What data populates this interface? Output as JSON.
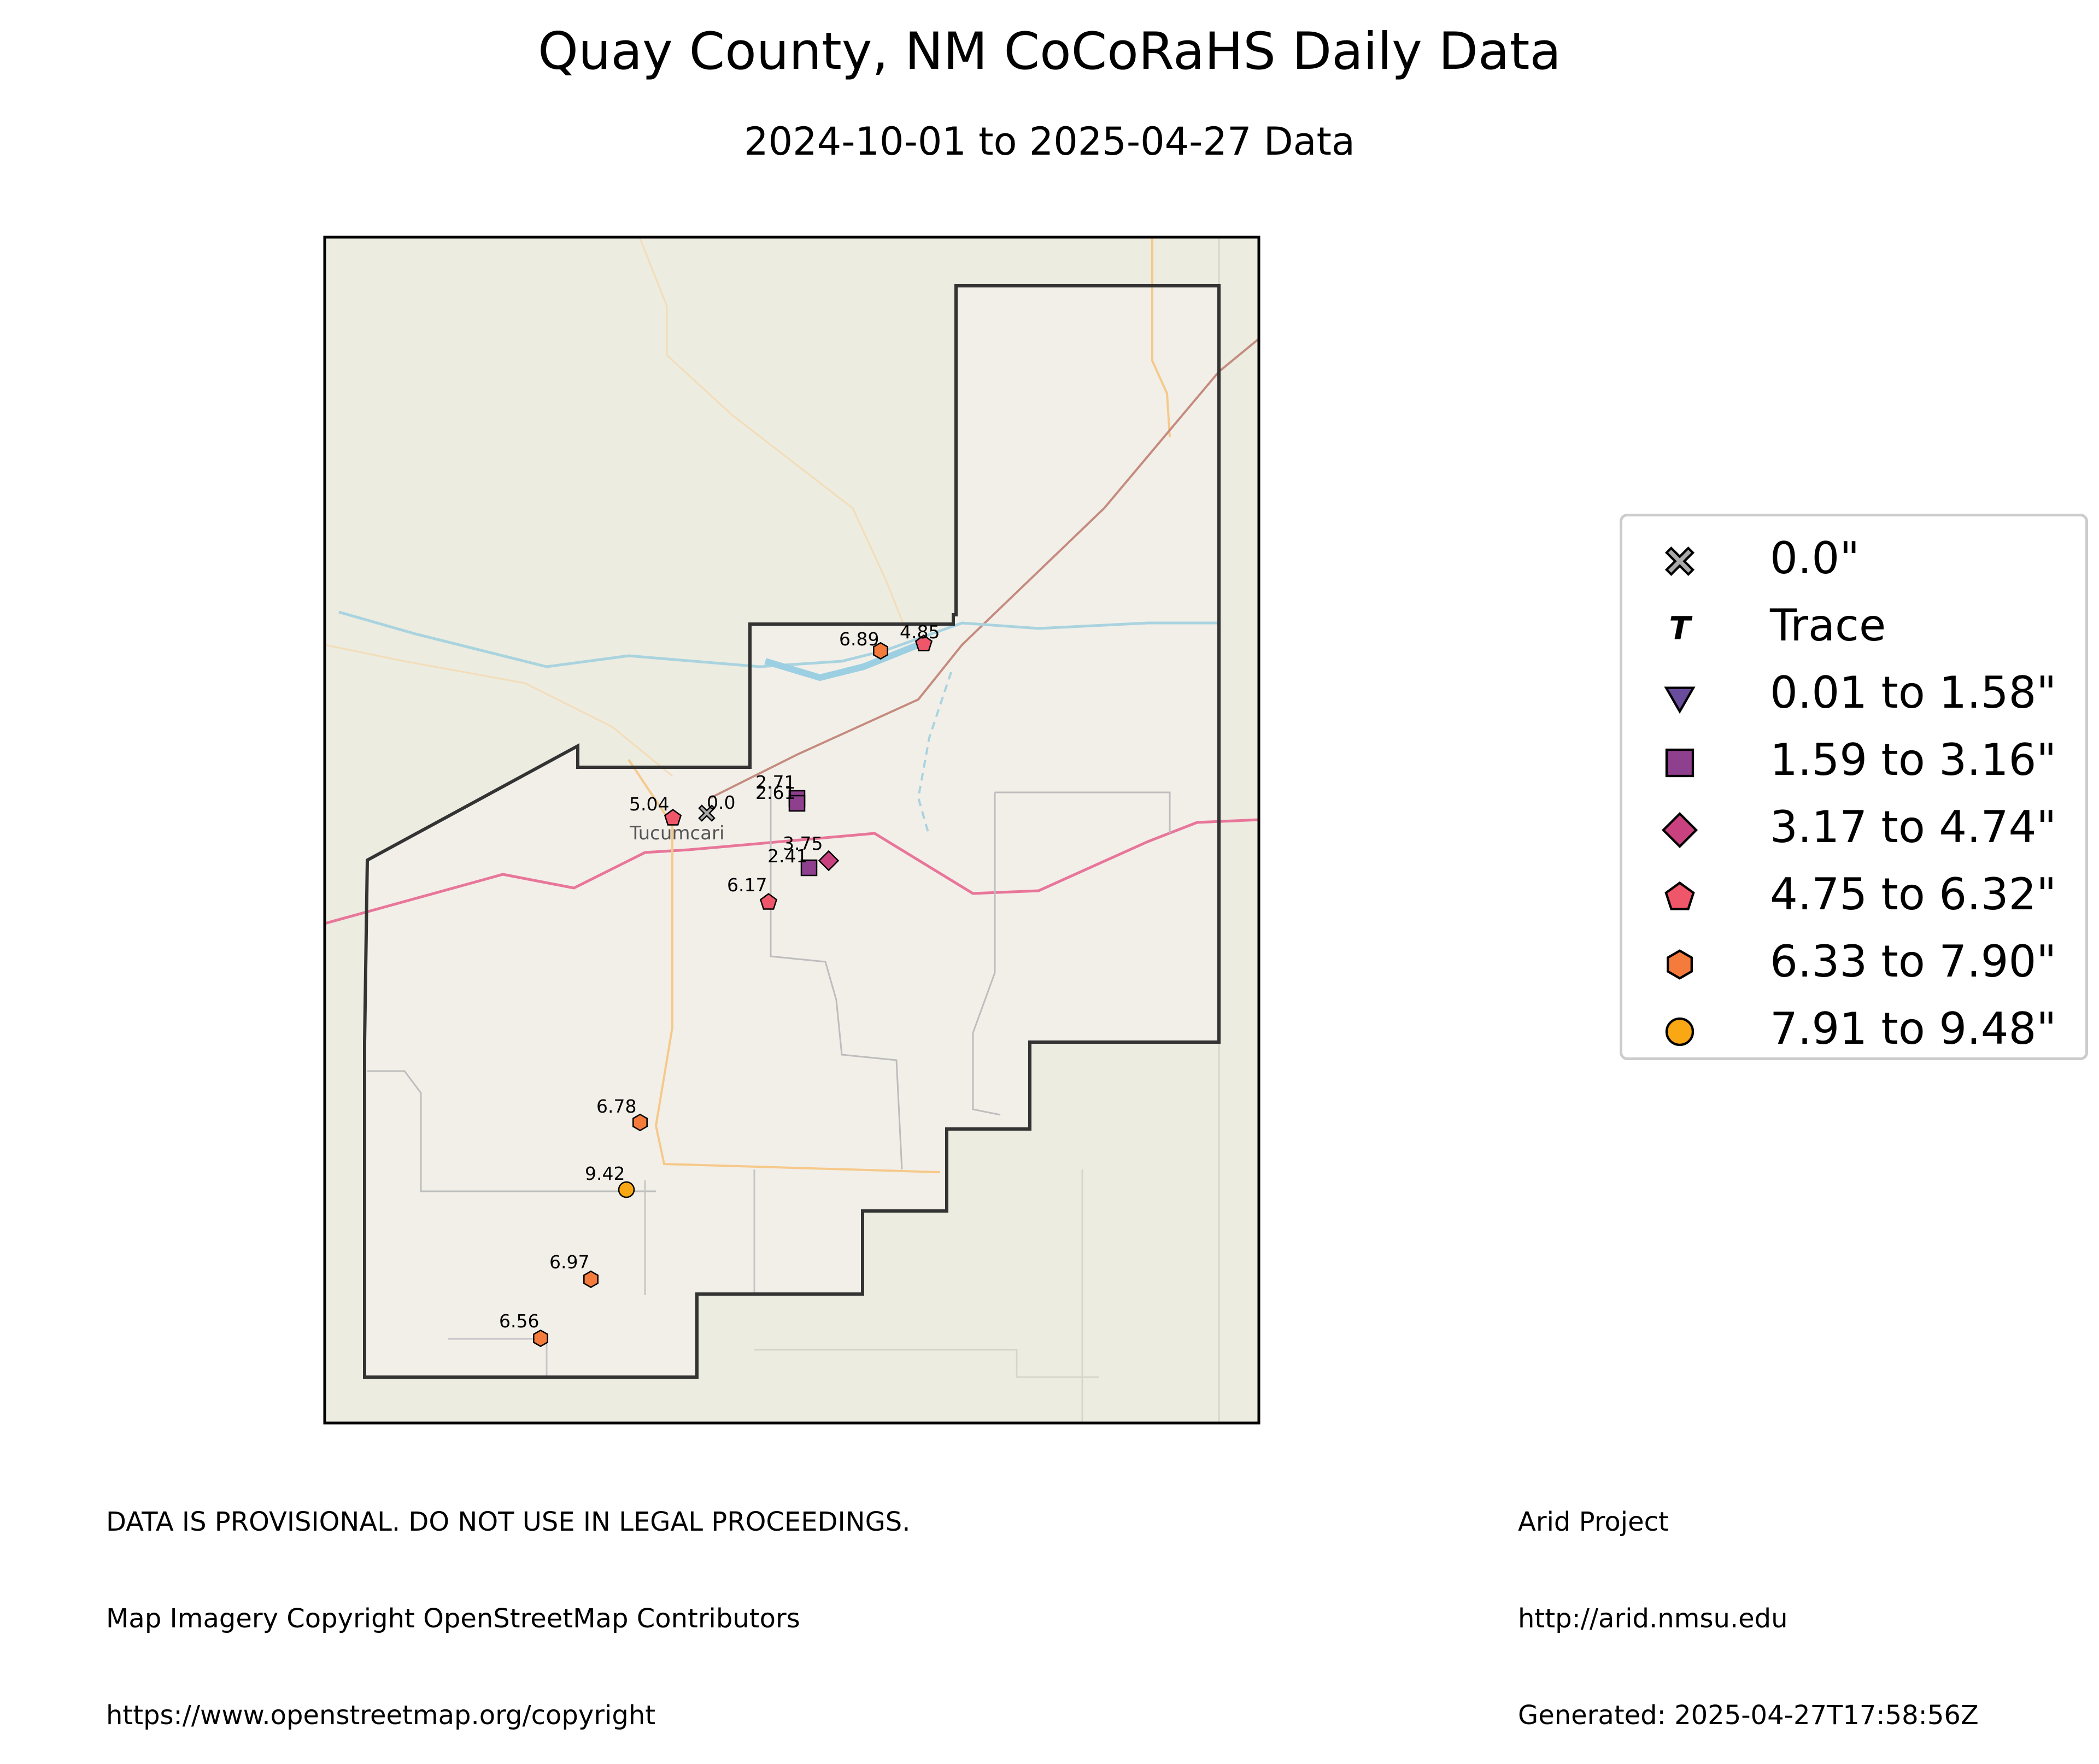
{
  "title": "Quay County, NM CoCoRaHS Daily Data",
  "subtitle": "2024-10-01 to 2025-04-27 Data",
  "town": "Tucumcari",
  "legend": [
    {
      "label": "0.0\"",
      "marker": "x",
      "color": "#aaaaaa"
    },
    {
      "label": "Trace",
      "marker": "T",
      "color": "#000000"
    },
    {
      "label": "0.01 to 1.58\"",
      "marker": "triangle-down",
      "color": "#6a4c9c"
    },
    {
      "label": "1.59 to 3.16\"",
      "marker": "square",
      "color": "#8e3f8e"
    },
    {
      "label": "3.17 to 4.74\"",
      "marker": "diamond",
      "color": "#c9417e"
    },
    {
      "label": "4.75 to 6.32\"",
      "marker": "pentagon",
      "color": "#f0566a"
    },
    {
      "label": "6.33 to 7.90\"",
      "marker": "hexagon",
      "color": "#f57b3c"
    },
    {
      "label": "7.91 to 9.48\"",
      "marker": "circle",
      "color": "#f9a712"
    }
  ],
  "stations": [
    {
      "value": "0.0",
      "marker": "x"
    },
    {
      "value": "5.04",
      "marker": "pentagon"
    },
    {
      "value": "2.71",
      "marker": "square"
    },
    {
      "value": "2.61",
      "marker": "square"
    },
    {
      "value": "6.89",
      "marker": "hexagon"
    },
    {
      "value": "4.85",
      "marker": "pentagon"
    },
    {
      "value": "3.75",
      "marker": "diamond"
    },
    {
      "value": "2.41",
      "marker": "square"
    },
    {
      "value": "6.17",
      "marker": "pentagon"
    },
    {
      "value": "6.78",
      "marker": "hexagon"
    },
    {
      "value": "9.42",
      "marker": "circle"
    },
    {
      "value": "6.97",
      "marker": "hexagon"
    },
    {
      "value": "6.56",
      "marker": "hexagon"
    }
  ],
  "footer_left": [
    "DATA IS PROVISIONAL. DO NOT USE IN LEGAL PROCEEDINGS.",
    "Map Imagery Copyright OpenStreetMap Contributors",
    "https://www.openstreetmap.org/copyright"
  ],
  "footer_right": [
    "Arid Project",
    "http://arid.nmsu.edu",
    "Generated: 2025-04-27T17:58:56Z"
  ]
}
